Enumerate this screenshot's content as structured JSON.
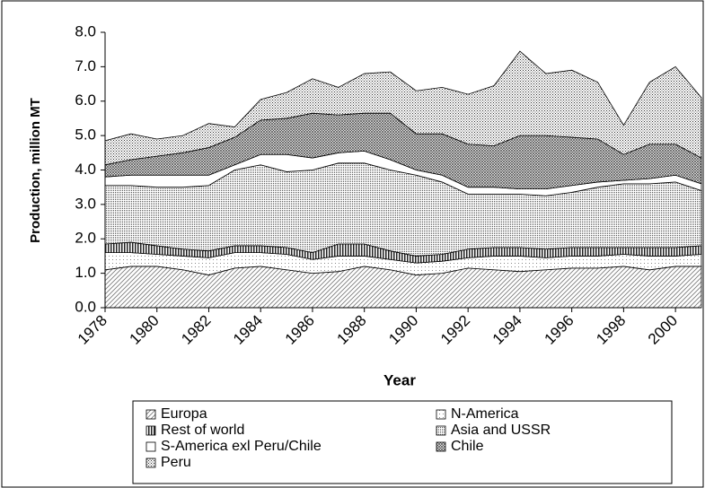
{
  "chart_data": {
    "type": "stacked-area",
    "x_label": "Year",
    "y_label": "Production, million MT",
    "x": [
      1978,
      1979,
      1980,
      1981,
      1982,
      1983,
      1984,
      1985,
      1986,
      1987,
      1988,
      1989,
      1990,
      1991,
      1992,
      1993,
      1994,
      1995,
      1996,
      1997,
      1998,
      1999,
      2000,
      2001
    ],
    "xlim": [
      1978,
      2001
    ],
    "xticks": [
      1978,
      1980,
      1982,
      1984,
      1986,
      1988,
      1990,
      1992,
      1994,
      1996,
      1998,
      2000
    ],
    "ylim": [
      0,
      8
    ],
    "yticks": [
      {
        "value": 0,
        "label": "0.0"
      },
      {
        "value": 1,
        "label": "1.0"
      },
      {
        "value": 2,
        "label": "2.0"
      },
      {
        "value": 3,
        "label": "3.0"
      },
      {
        "value": 4,
        "label": "4.0"
      },
      {
        "value": 5,
        "label": "5.0"
      },
      {
        "value": 6,
        "label": "6.0"
      },
      {
        "value": 7,
        "label": "7.0"
      },
      {
        "value": 8,
        "label": "8.0"
      }
    ],
    "grid": false,
    "legend": "bottom",
    "series": [
      {
        "name": "Europa",
        "color": "#777777",
        "pattern": "diagonal",
        "values": [
          1.1,
          1.2,
          1.2,
          1.1,
          0.95,
          1.15,
          1.2,
          1.1,
          1.0,
          1.05,
          1.2,
          1.1,
          0.95,
          1.0,
          1.15,
          1.1,
          1.05,
          1.1,
          1.15,
          1.15,
          1.2,
          1.1,
          1.2,
          1.2
        ]
      },
      {
        "name": "N-America",
        "color": "#888888",
        "pattern": "dots",
        "values": [
          0.5,
          0.4,
          0.35,
          0.4,
          0.5,
          0.45,
          0.4,
          0.45,
          0.4,
          0.45,
          0.3,
          0.3,
          0.35,
          0.35,
          0.3,
          0.4,
          0.45,
          0.35,
          0.35,
          0.35,
          0.35,
          0.4,
          0.3,
          0.35
        ]
      },
      {
        "name": "Rest of world",
        "color": "#222222",
        "pattern": "vertical",
        "values": [
          0.25,
          0.3,
          0.25,
          0.2,
          0.2,
          0.2,
          0.2,
          0.2,
          0.2,
          0.35,
          0.35,
          0.25,
          0.2,
          0.2,
          0.25,
          0.25,
          0.25,
          0.25,
          0.25,
          0.25,
          0.2,
          0.25,
          0.25,
          0.25
        ]
      },
      {
        "name": "Asia and USSR",
        "color": "#555555",
        "pattern": "dense-dots",
        "values": [
          1.7,
          1.65,
          1.7,
          1.8,
          1.9,
          2.2,
          2.35,
          2.2,
          2.4,
          2.35,
          2.35,
          2.35,
          2.35,
          2.1,
          1.6,
          1.55,
          1.55,
          1.55,
          1.6,
          1.75,
          1.85,
          1.85,
          1.9,
          1.6
        ]
      },
      {
        "name": "S-America exl Peru/Chile",
        "color": "#ffffff",
        "pattern": "none",
        "values": [
          0.25,
          0.3,
          0.35,
          0.35,
          0.3,
          0.15,
          0.3,
          0.5,
          0.35,
          0.3,
          0.35,
          0.3,
          0.15,
          0.2,
          0.2,
          0.2,
          0.15,
          0.2,
          0.2,
          0.15,
          0.1,
          0.15,
          0.2,
          0.2
        ]
      },
      {
        "name": "Chile",
        "color": "#444444",
        "pattern": "crosshatch",
        "values": [
          0.35,
          0.45,
          0.55,
          0.65,
          0.8,
          0.8,
          1.0,
          1.05,
          1.3,
          1.1,
          1.1,
          1.35,
          1.05,
          1.2,
          1.25,
          1.2,
          1.55,
          1.55,
          1.4,
          1.25,
          0.75,
          1.0,
          0.9,
          0.75
        ]
      },
      {
        "name": "Peru",
        "color": "#333333",
        "pattern": "grid-dots",
        "values": [
          0.7,
          0.75,
          0.5,
          0.5,
          0.7,
          0.3,
          0.6,
          0.75,
          1.0,
          0.8,
          1.15,
          1.2,
          1.25,
          1.35,
          1.45,
          1.75,
          2.45,
          1.8,
          1.95,
          1.65,
          0.85,
          1.8,
          2.25,
          1.75
        ]
      }
    ]
  }
}
